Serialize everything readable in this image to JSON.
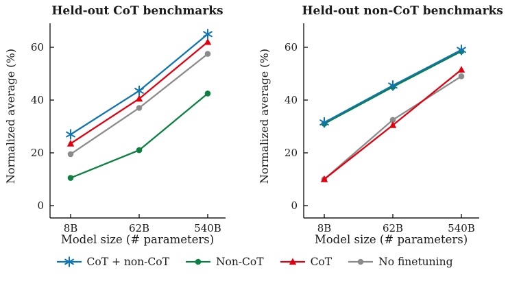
{
  "colors": {
    "blue": "#0f74b4",
    "green": "#0b8040",
    "red": "#e2000e",
    "gray": "#8b8b8b",
    "axis": "#1a1a1a",
    "text": "#1a1a1a",
    "background": "#ffffff"
  },
  "chart_data": [
    {
      "type": "line",
      "title": "Held-out CoT benchmarks",
      "xlabel": "Model size (# parameters)",
      "ylabel": "Normalized average (%)",
      "categories": [
        "8B",
        "62B",
        "540B"
      ],
      "y_ticks": [
        0,
        20,
        40,
        60
      ],
      "ylim": [
        0,
        69
      ],
      "grid": false,
      "series": [
        {
          "name": "No finetuning",
          "marker": "circle",
          "color": "gray",
          "values": [
            19.5,
            37,
            57.5
          ]
        },
        {
          "name": "Non-CoT",
          "marker": "circle",
          "color": "green",
          "values": [
            10.5,
            21,
            42.5
          ]
        },
        {
          "name": "CoT",
          "marker": "triangle",
          "color": "red",
          "values": [
            23.5,
            40.5,
            62
          ]
        },
        {
          "name": "CoT + non-CoT",
          "marker": "star",
          "color": "blue",
          "values": [
            27,
            43.5,
            65
          ]
        }
      ]
    },
    {
      "type": "line",
      "title": "Held-out non-CoT benchmarks",
      "xlabel": "Model size (# parameters)",
      "ylabel": "Normalized average (%)",
      "categories": [
        "8B",
        "62B",
        "540B"
      ],
      "y_ticks": [
        0,
        20,
        40,
        60
      ],
      "ylim": [
        0,
        69
      ],
      "grid": false,
      "series": [
        {
          "name": "No finetuning",
          "marker": "circle",
          "color": "gray",
          "values": [
            10,
            32.5,
            49
          ]
        },
        {
          "name": "CoT",
          "marker": "triangle",
          "color": "red",
          "values": [
            10,
            30.5,
            51.5
          ]
        },
        {
          "name": "Non-CoT",
          "marker": "circle",
          "color": "green",
          "values": [
            31,
            45,
            58.5
          ]
        },
        {
          "name": "CoT + non-CoT",
          "marker": "star",
          "color": "blue",
          "values": [
            31.5,
            45.5,
            59
          ]
        }
      ]
    }
  ],
  "legend": {
    "entries": [
      {
        "label": "CoT + non-CoT",
        "marker": "star",
        "color": "blue"
      },
      {
        "label": "Non-CoT",
        "marker": "circle",
        "color": "green"
      },
      {
        "label": "CoT",
        "marker": "triangle",
        "color": "red"
      },
      {
        "label": "No finetuning",
        "marker": "circle",
        "color": "gray"
      }
    ]
  }
}
